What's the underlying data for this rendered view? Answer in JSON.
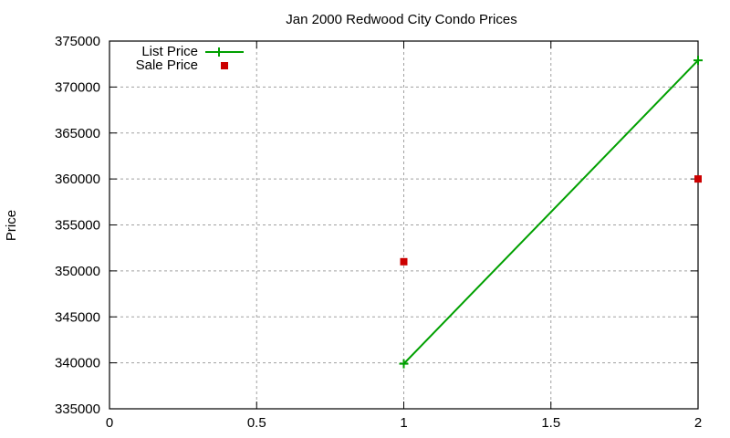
{
  "chart_data": {
    "type": "line",
    "title": "Jan 2000 Redwood City Condo Prices",
    "xlabel": "",
    "ylabel": "Price",
    "xlim": [
      0,
      2
    ],
    "ylim": [
      335000,
      375000
    ],
    "x_ticks": [
      "0",
      "0.5",
      "1",
      "1.5",
      "2"
    ],
    "y_ticks": [
      "335000",
      "340000",
      "345000",
      "350000",
      "355000",
      "360000",
      "365000",
      "370000",
      "375000"
    ],
    "grid": true,
    "legend_position": "top-left",
    "series": [
      {
        "name": "List Price",
        "style": "line+cross",
        "color": "#00a000",
        "x": [
          1,
          2
        ],
        "values": [
          339900,
          372900
        ]
      },
      {
        "name": "Sale Price",
        "style": "square-points",
        "color": "#cc0000",
        "x": [
          1,
          2
        ],
        "values": [
          351000,
          360000
        ]
      }
    ]
  }
}
